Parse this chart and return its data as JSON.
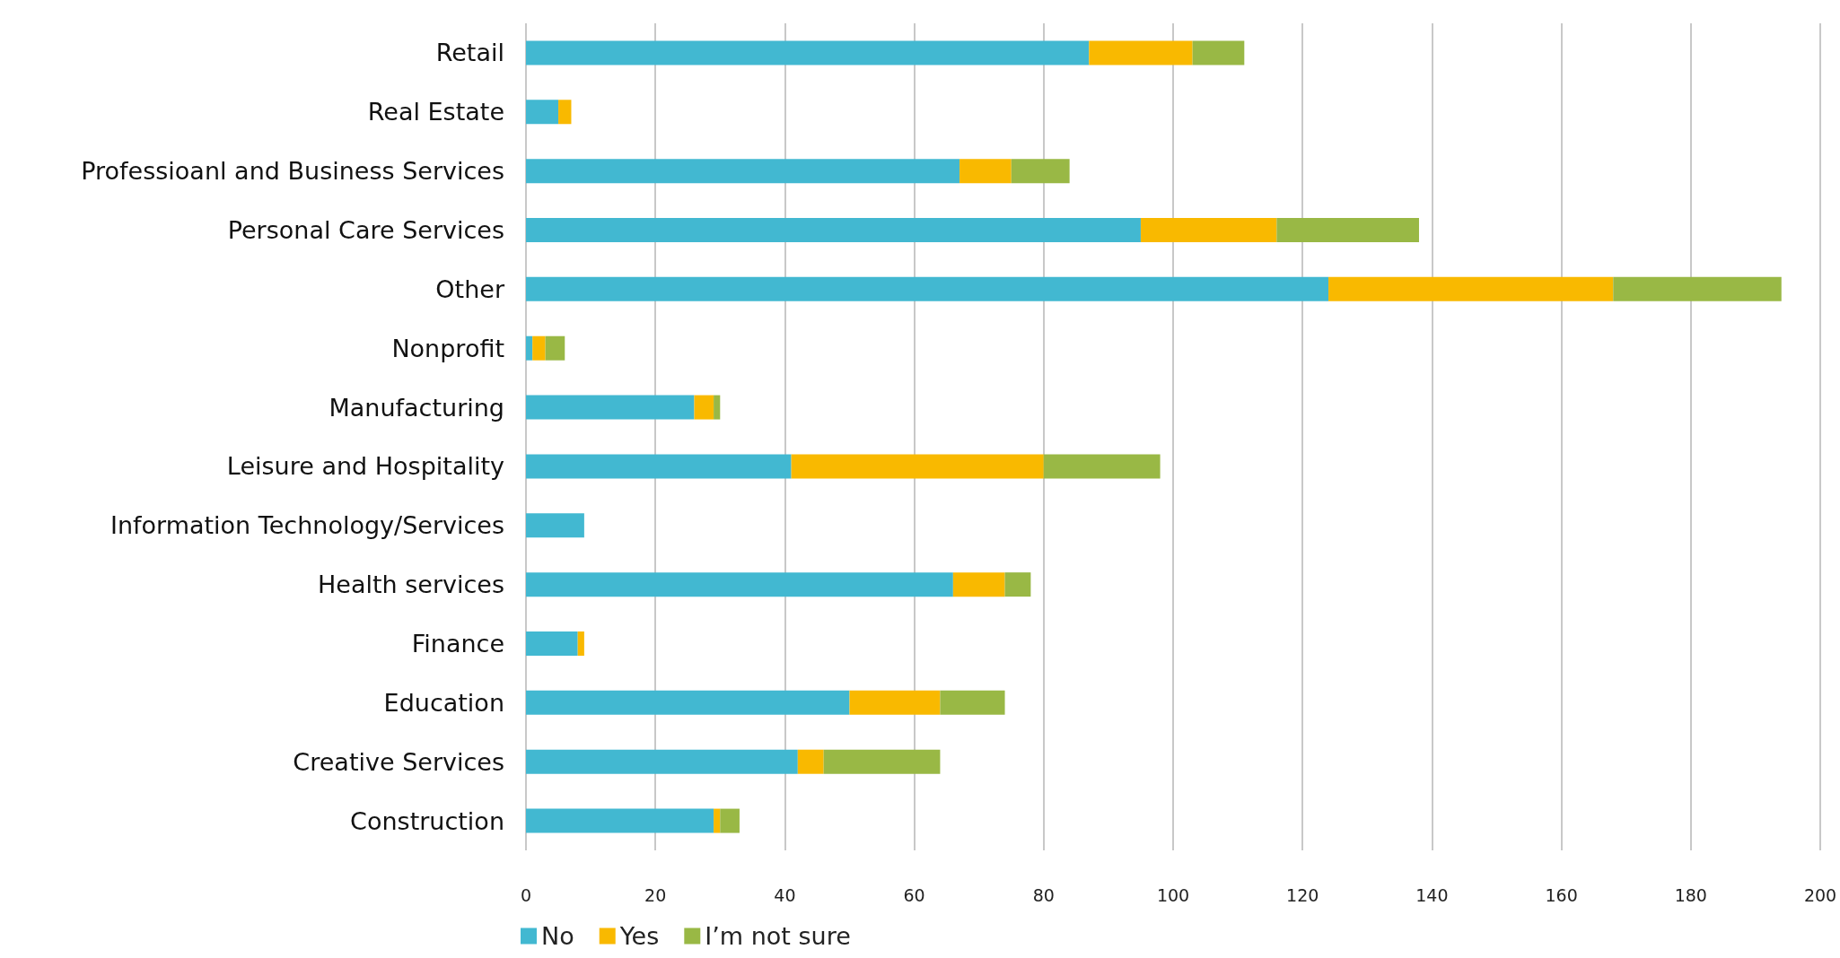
{
  "chart_data": {
    "type": "bar",
    "orientation": "horizontal",
    "stacked": true,
    "categories": [
      "Retail",
      "Real Estate",
      "Professioanl and Business Services",
      "Personal Care Services",
      "Other",
      "Nonprofit",
      "Manufacturing",
      "Leisure and Hospitality",
      "Information Technology/Services",
      "Health services",
      "Finance",
      "Education",
      "Creative Services",
      "Construction"
    ],
    "series": [
      {
        "name": "No",
        "color": "#42b8d1",
        "values": [
          87,
          5,
          67,
          95,
          124,
          1,
          26,
          41,
          9,
          66,
          8,
          50,
          42,
          29
        ]
      },
      {
        "name": "Yes",
        "color": "#f9b900",
        "values": [
          16,
          2,
          8,
          21,
          44,
          2,
          3,
          39,
          null,
          8,
          1,
          14,
          4,
          1
        ]
      },
      {
        "name": "I’m not sure",
        "color": "#99b845",
        "values": [
          8,
          null,
          9,
          22,
          26,
          3,
          1,
          18,
          null,
          4,
          null,
          10,
          18,
          3
        ]
      }
    ],
    "xlim": [
      0,
      200
    ],
    "xticks": [
      0,
      20,
      40,
      60,
      80,
      100,
      120,
      140,
      160,
      180,
      200
    ],
    "grid": "x",
    "legend": "bottom left"
  }
}
